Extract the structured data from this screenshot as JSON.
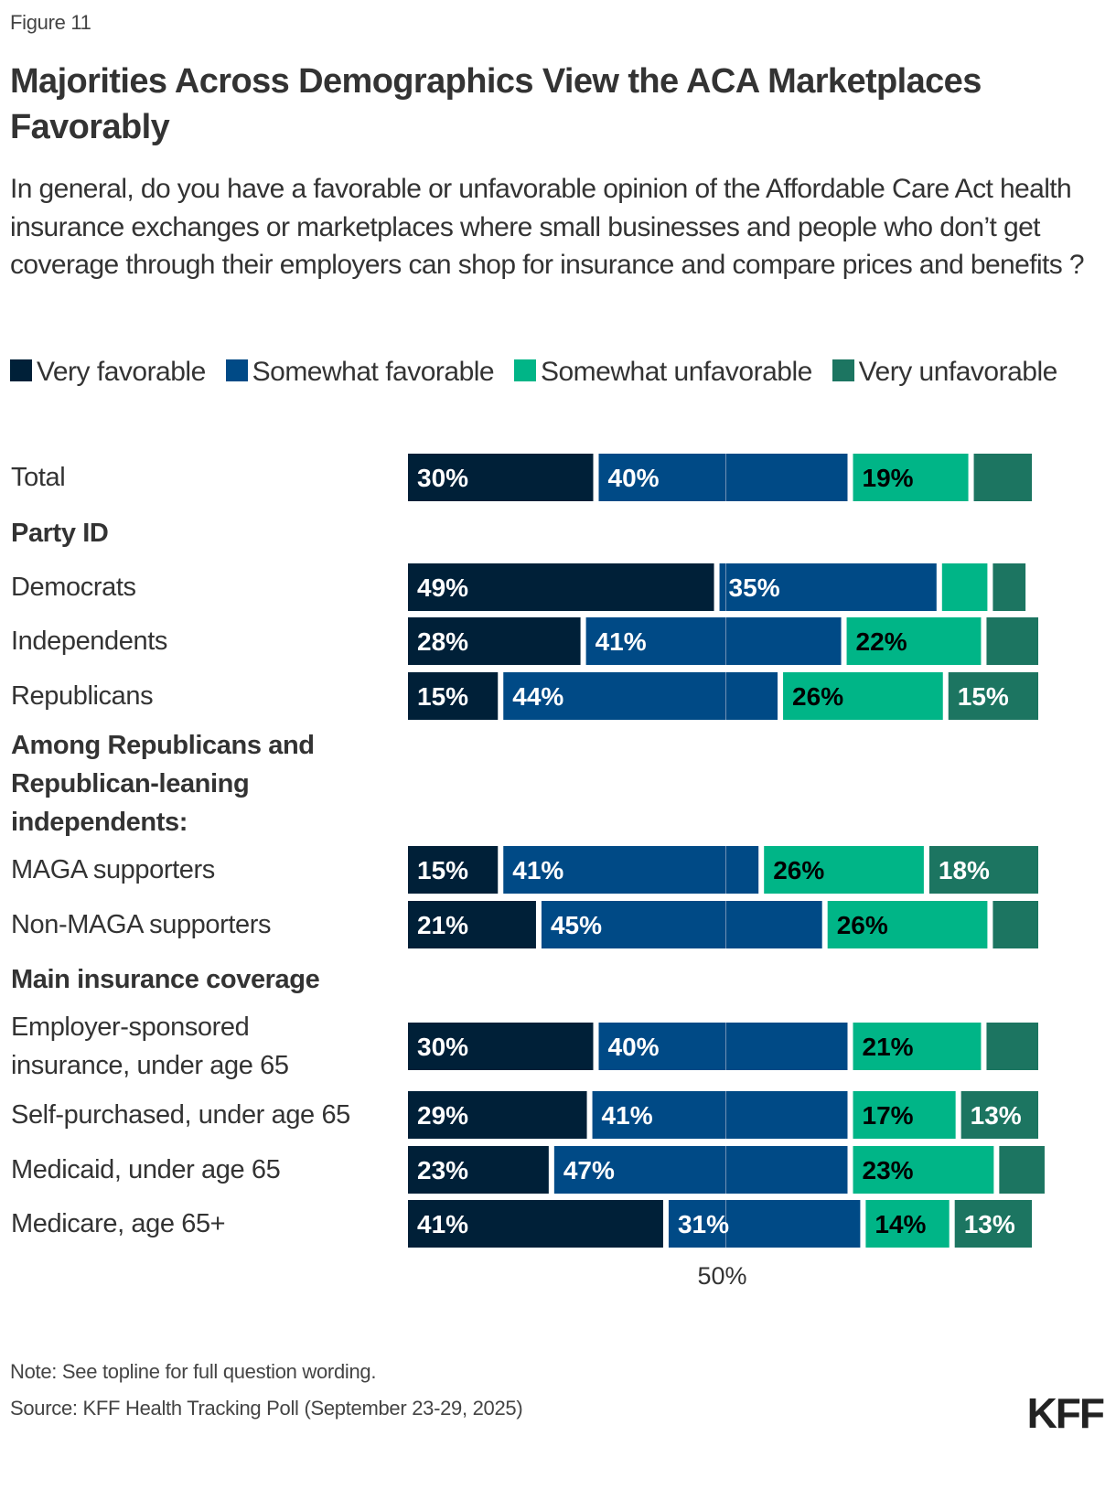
{
  "figure_label": "Figure 11",
  "title": "Majorities Across Demographics View the ACA Marketplaces Favorably",
  "subtitle": "In general, do you have a favorable or unfavorable opinion of the Affordable Care Act health insurance exchanges or marketplaces where small businesses and people who don’t get coverage through their employers can shop for insurance and compare prices and benefits ?",
  "note": "Note: See topline for full question wording.",
  "source": "Source: KFF Health Tracking Poll (September 23-29, 2025)",
  "logo": "KFF",
  "colors": {
    "very_favorable": "#002038",
    "somewhat_favorable": "#004a86",
    "somewhat_unfavorable": "#00b587",
    "very_unfavorable": "#1c7561",
    "reference_line": "#6f90b5"
  },
  "chart_data": {
    "type": "bar",
    "orientation": "horizontal",
    "stacked": true,
    "title": "Majorities Across Demographics View the ACA Marketplaces Favorably",
    "xlabel": "",
    "ylabel": "",
    "xlim": [
      0,
      100
    ],
    "reference_line": {
      "value": 50,
      "label": "50%"
    },
    "legend_position": "top",
    "series": [
      {
        "name": "Very favorable",
        "key": "very_favorable",
        "label_color": "#ffffff"
      },
      {
        "name": "Somewhat favorable",
        "key": "somewhat_favorable",
        "label_color": "#ffffff"
      },
      {
        "name": "Somewhat unfavorable",
        "key": "somewhat_unfavorable",
        "label_color": "#000000"
      },
      {
        "name": "Very unfavorable",
        "key": "very_unfavorable",
        "label_color": "#ffffff"
      }
    ],
    "rows": [
      {
        "type": "data",
        "label": "Total",
        "values": [
          30,
          40,
          19,
          10
        ],
        "labels": [
          "30%",
          "40%",
          "19%",
          ""
        ]
      },
      {
        "type": "header",
        "label": "Party ID"
      },
      {
        "type": "data",
        "label": "Democrats",
        "values": [
          49,
          35,
          8,
          6
        ],
        "labels": [
          "49%",
          "35%",
          "",
          ""
        ]
      },
      {
        "type": "data",
        "label": "Independents",
        "values": [
          28,
          41,
          22,
          9
        ],
        "labels": [
          "28%",
          "41%",
          "22%",
          ""
        ]
      },
      {
        "type": "data",
        "label": "Republicans",
        "values": [
          15,
          44,
          26,
          15
        ],
        "labels": [
          "15%",
          "44%",
          "26%",
          "15%"
        ]
      },
      {
        "type": "header",
        "label": "Among Republicans and Republican-leaning independents:"
      },
      {
        "type": "data",
        "label": "MAGA supporters",
        "values": [
          15,
          41,
          26,
          18
        ],
        "labels": [
          "15%",
          "41%",
          "26%",
          "18%"
        ]
      },
      {
        "type": "data",
        "label": "Non-MAGA supporters",
        "values": [
          21,
          45,
          26,
          8
        ],
        "labels": [
          "21%",
          "45%",
          "26%",
          ""
        ]
      },
      {
        "type": "header",
        "label": "Main insurance coverage"
      },
      {
        "type": "data",
        "label": "Employer-sponsored insurance, under age 65",
        "values": [
          30,
          40,
          21,
          9
        ],
        "labels": [
          "30%",
          "40%",
          "21%",
          ""
        ]
      },
      {
        "type": "data",
        "label": "Self-purchased, under age 65",
        "values": [
          29,
          41,
          17,
          13
        ],
        "labels": [
          "29%",
          "41%",
          "17%",
          "13%"
        ]
      },
      {
        "type": "data",
        "label": "Medicaid, under age 65",
        "values": [
          23,
          47,
          23,
          8
        ],
        "labels": [
          "23%",
          "47%",
          "23%",
          ""
        ]
      },
      {
        "type": "data",
        "label": "Medicare, age 65+",
        "values": [
          41,
          31,
          14,
          13
        ],
        "labels": [
          "41%",
          "31%",
          "14%",
          "13%"
        ]
      }
    ]
  }
}
